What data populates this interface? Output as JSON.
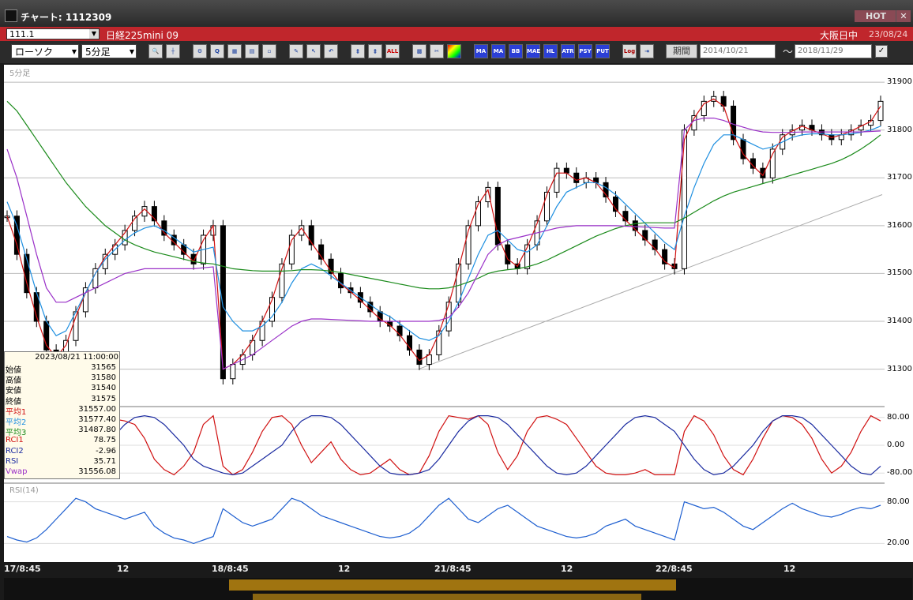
{
  "window": {
    "title": "チャート: 1112309",
    "hot_label": "HOT",
    "close_label": "✕"
  },
  "header": {
    "code": "111.1",
    "instrument": "日経225mini 09",
    "session": "大阪日中",
    "date": "23/08/24"
  },
  "toolbar": {
    "chart_type": "ローソク",
    "interval": "5分足",
    "period_button": "期間",
    "date_from": "2014/10/21",
    "date_to": "2018/11/29",
    "tilde": "〜",
    "buttons": [
      "MA",
      "BB",
      "MAE",
      "HL",
      "ATR",
      "PSY",
      "PUT",
      "Log",
      "ALL"
    ]
  },
  "chart_label": "5分足",
  "rsi_label": "RSI(14)",
  "info": {
    "datetime": "2023/08/21 11:00:00",
    "rows": [
      {
        "key": "始値",
        "value": "31565",
        "color": "#000000"
      },
      {
        "key": "高値",
        "value": "31580",
        "color": "#000000"
      },
      {
        "key": "安値",
        "value": "31540",
        "color": "#000000"
      },
      {
        "key": "終値",
        "value": "31575",
        "color": "#000000"
      },
      {
        "key": "平均1",
        "value": "31557.00",
        "color": "#d01010"
      },
      {
        "key": "平均2",
        "value": "31577.40",
        "color": "#1e8fe0"
      },
      {
        "key": "平均3",
        "value": "31487.80",
        "color": "#1a8a1a"
      },
      {
        "key": "RCI1",
        "value": "78.75",
        "color": "#d01010"
      },
      {
        "key": "RCI2",
        "value": "-2.96",
        "color": "#1a2aa0"
      },
      {
        "key": "RSI",
        "value": "35.71",
        "color": "#1a2aa0"
      },
      {
        "key": "Vwap",
        "value": "31556.08",
        "color": "#9a30c8"
      }
    ]
  },
  "price_axis": [
    "31900",
    "31800",
    "31700",
    "31600",
    "31500",
    "31400",
    "31300"
  ],
  "rci_axis": [
    "80.00",
    "0.00",
    "-80.00"
  ],
  "rsi_axis": [
    "80.00",
    "20.00"
  ],
  "time_axis": [
    "17/8:45",
    "12",
    "18/8:45",
    "12",
    "21/8:45",
    "12",
    "22/8:45",
    "12"
  ],
  "chart_data": {
    "type": "line",
    "title": "",
    "xlabel": "",
    "ylabel": "",
    "ylim": [
      31230,
      31920
    ],
    "x_ticks": [
      "17/8:45",
      "12",
      "18/8:45",
      "12",
      "21/8:45",
      "12",
      "22/8:45",
      "12"
    ],
    "price_close": [
      31620,
      31540,
      31460,
      31400,
      31340,
      31320,
      31360,
      31420,
      31470,
      31510,
      31540,
      31560,
      31590,
      31620,
      31640,
      31610,
      31580,
      31560,
      31540,
      31520,
      31580,
      31600,
      31280,
      31310,
      31330,
      31360,
      31400,
      31450,
      31520,
      31580,
      31600,
      31560,
      31530,
      31500,
      31470,
      31460,
      31440,
      31420,
      31400,
      31390,
      31370,
      31340,
      31310,
      31330,
      31380,
      31440,
      31520,
      31600,
      31650,
      31680,
      31560,
      31520,
      31510,
      31560,
      31610,
      31670,
      31720,
      31710,
      31690,
      31700,
      31690,
      31660,
      31630,
      31610,
      31590,
      31570,
      31550,
      31520,
      31510,
      31800,
      31830,
      31860,
      31870,
      31850,
      31780,
      31740,
      31720,
      31700,
      31760,
      31790,
      31800,
      31810,
      31800,
      31790,
      31780,
      31790,
      31800,
      31810,
      31820,
      31860
    ],
    "series": [
      {
        "name": "平均1",
        "color": "#d01010",
        "values": [
          31620,
          31560,
          31480,
          31410,
          31350,
          31325,
          31350,
          31410,
          31460,
          31500,
          31535,
          31560,
          31585,
          31615,
          31635,
          31615,
          31585,
          31565,
          31545,
          31525,
          31570,
          31600,
          31300,
          31310,
          31330,
          31360,
          31400,
          31445,
          31510,
          31570,
          31595,
          31565,
          31535,
          31505,
          31478,
          31462,
          31444,
          31424,
          31405,
          31392,
          31372,
          31345,
          31318,
          31330,
          31375,
          31435,
          31510,
          31590,
          31645,
          31675,
          31580,
          31530,
          31515,
          31555,
          31605,
          31665,
          31710,
          31710,
          31695,
          31700,
          31690,
          31665,
          31635,
          31612,
          31592,
          31572,
          31552,
          31525,
          31512,
          31780,
          31825,
          31855,
          31865,
          31850,
          31790,
          31750,
          31725,
          31705,
          31750,
          31785,
          31798,
          31808,
          31800,
          31792,
          31784,
          31790,
          31798,
          31808,
          31818,
          31850
        ]
      },
      {
        "name": "平均2",
        "color": "#1e8fe0",
        "values": [
          31650,
          31600,
          31530,
          31460,
          31400,
          31370,
          31380,
          31420,
          31460,
          31500,
          31530,
          31550,
          31570,
          31585,
          31595,
          31600,
          31590,
          31575,
          31560,
          31545,
          31550,
          31555,
          31430,
          31400,
          31380,
          31380,
          31390,
          31410,
          31440,
          31480,
          31510,
          31520,
          31510,
          31495,
          31480,
          31465,
          31450,
          31435,
          31420,
          31410,
          31395,
          31380,
          31365,
          31360,
          31370,
          31400,
          31440,
          31490,
          31540,
          31580,
          31590,
          31570,
          31550,
          31545,
          31560,
          31600,
          31640,
          31670,
          31680,
          31690,
          31690,
          31680,
          31665,
          31645,
          31625,
          31605,
          31585,
          31565,
          31550,
          31620,
          31680,
          31730,
          31770,
          31790,
          31790,
          31780,
          31770,
          31760,
          31765,
          31775,
          31785,
          31790,
          31792,
          31792,
          31790,
          31790,
          31792,
          31795,
          31800,
          31808
        ]
      },
      {
        "name": "平均3",
        "color": "#1a8a1a",
        "values": [
          31860,
          31840,
          31810,
          31780,
          31750,
          31720,
          31690,
          31665,
          31640,
          31620,
          31600,
          31585,
          31570,
          31560,
          31552,
          31545,
          31540,
          31535,
          31530,
          31525,
          31522,
          31520,
          31515,
          31510,
          31508,
          31506,
          31505,
          31505,
          31505,
          31506,
          31508,
          31508,
          31507,
          31505,
          31502,
          31498,
          31494,
          31490,
          31486,
          31482,
          31478,
          31474,
          31470,
          31468,
          31468,
          31470,
          31475,
          31482,
          31490,
          31500,
          31505,
          31508,
          31510,
          31514,
          31520,
          31528,
          31538,
          31548,
          31558,
          31568,
          31578,
          31586,
          31594,
          31600,
          31604,
          31606,
          31606,
          31606,
          31606,
          31616,
          31628,
          31640,
          31652,
          31662,
          31670,
          31676,
          31682,
          31688,
          31694,
          31700,
          31706,
          31712,
          31718,
          31724,
          31730,
          31738,
          31748,
          31760,
          31774,
          31790
        ]
      },
      {
        "name": "Vwap",
        "color": "#9a30c8",
        "values": [
          31760,
          31700,
          31620,
          31540,
          31470,
          31440,
          31440,
          31450,
          31460,
          31470,
          31480,
          31490,
          31500,
          31505,
          31510,
          31510,
          31510,
          31510,
          31510,
          31510,
          31512,
          31514,
          31300,
          31310,
          31320,
          31330,
          31345,
          31360,
          31375,
          31390,
          31400,
          31405,
          31405,
          31404,
          31403,
          31402,
          31401,
          31400,
          31400,
          31400,
          31400,
          31400,
          31400,
          31400,
          31402,
          31408,
          31430,
          31460,
          31500,
          31540,
          31560,
          31570,
          31575,
          31580,
          31585,
          31590,
          31595,
          31598,
          31600,
          31600,
          31600,
          31600,
          31600,
          31599,
          31598,
          31597,
          31596,
          31595,
          31595,
          31800,
          31820,
          31825,
          31825,
          31820,
          31812,
          31806,
          31800,
          31796,
          31795,
          31795,
          31795,
          31796,
          31796,
          31796,
          31796,
          31796,
          31796,
          31796,
          31797,
          31798
        ]
      }
    ],
    "rci": [
      {
        "name": "RCI1",
        "color": "#d01010",
        "values": [
          80,
          60,
          0,
          -60,
          -85,
          -80,
          -40,
          20,
          70,
          85,
          80,
          75,
          70,
          60,
          20,
          -40,
          -70,
          -85,
          -60,
          -20,
          60,
          85,
          -60,
          -85,
          -70,
          -20,
          40,
          80,
          85,
          60,
          0,
          -50,
          -20,
          10,
          -40,
          -70,
          -85,
          -80,
          -60,
          -40,
          -70,
          -85,
          -80,
          -30,
          40,
          85,
          80,
          75,
          85,
          60,
          -20,
          -70,
          -30,
          40,
          80,
          85,
          75,
          60,
          20,
          -20,
          -60,
          -80,
          -85,
          -85,
          -80,
          -70,
          -85,
          -85,
          -85,
          40,
          85,
          70,
          30,
          -30,
          -70,
          -85,
          -40,
          20,
          70,
          85,
          80,
          60,
          20,
          -40,
          -80,
          -60,
          -20,
          40,
          85,
          70
        ]
      },
      {
        "name": "RCI2",
        "color": "#1a2aa0",
        "values": [
          80,
          85,
          60,
          20,
          -20,
          -60,
          -80,
          -80,
          -60,
          -30,
          0,
          30,
          60,
          80,
          85,
          80,
          60,
          30,
          0,
          -40,
          -60,
          -70,
          -80,
          -85,
          -80,
          -60,
          -40,
          -20,
          0,
          40,
          70,
          85,
          85,
          80,
          60,
          30,
          0,
          -30,
          -60,
          -80,
          -85,
          -85,
          -80,
          -70,
          -40,
          0,
          40,
          70,
          85,
          85,
          80,
          60,
          30,
          0,
          -30,
          -60,
          -80,
          -85,
          -80,
          -60,
          -30,
          0,
          30,
          60,
          80,
          85,
          80,
          60,
          40,
          0,
          -40,
          -70,
          -85,
          -80,
          -60,
          -30,
          0,
          40,
          70,
          85,
          85,
          80,
          60,
          30,
          0,
          -30,
          -60,
          -80,
          -85,
          -60
        ]
      }
    ],
    "rsi": {
      "name": "RSI(14)",
      "color": "#1e5fd0",
      "values": [
        30,
        25,
        22,
        28,
        40,
        55,
        70,
        85,
        80,
        70,
        65,
        60,
        55,
        60,
        65,
        45,
        35,
        28,
        25,
        20,
        25,
        30,
        70,
        60,
        50,
        45,
        50,
        55,
        70,
        85,
        80,
        70,
        60,
        55,
        50,
        45,
        40,
        35,
        30,
        28,
        30,
        35,
        45,
        60,
        75,
        85,
        70,
        55,
        50,
        60,
        70,
        75,
        65,
        55,
        45,
        40,
        35,
        30,
        28,
        30,
        35,
        45,
        50,
        55,
        45,
        40,
        35,
        30,
        25,
        80,
        75,
        70,
        72,
        65,
        55,
        45,
        40,
        50,
        60,
        70,
        78,
        70,
        65,
        60,
        58,
        62,
        68,
        72,
        70,
        75
      ]
    }
  }
}
